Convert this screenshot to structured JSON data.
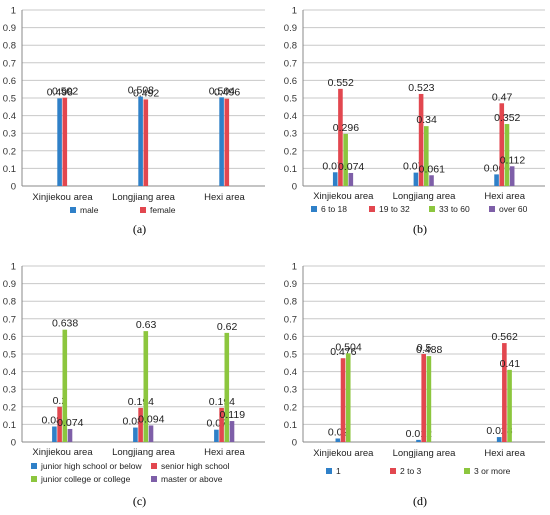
{
  "colors": {
    "blue": "#2f80c8",
    "red": "#e2474f",
    "green": "#8cc63e",
    "purple": "#7e5fa8"
  },
  "chart_data": [
    {
      "type": "bar",
      "caption": "(a)",
      "categories": [
        "Xinjiekou area",
        "Longjiang area",
        "Hexi area"
      ],
      "ylim": [
        0,
        1
      ],
      "yticks": [
        "0",
        "0.1",
        "0.2",
        "0.3",
        "0.4",
        "0.5",
        "0.6",
        "0.7",
        "0.8",
        "0.9",
        "1"
      ],
      "grid": true,
      "legend_position": "bottom",
      "series": [
        {
          "name": "male",
          "color": "blue",
          "values": [
            0.498,
            0.508,
            0.504
          ],
          "labels": [
            "0.498",
            "0.508",
            "0.504"
          ]
        },
        {
          "name": "female",
          "color": "red",
          "values": [
            0.502,
            0.492,
            0.496
          ],
          "labels": [
            "0.502",
            "0.492",
            "0.496"
          ]
        }
      ]
    },
    {
      "type": "bar",
      "caption": "(b)",
      "categories": [
        "Xinjiekou area",
        "Longjiang area",
        "Hexi area"
      ],
      "ylim": [
        0,
        1
      ],
      "yticks": [
        "0",
        "0.1",
        "0.2",
        "0.3",
        "0.4",
        "0.5",
        "0.6",
        "0.7",
        "0.8",
        "0.9",
        "1"
      ],
      "grid": true,
      "legend_position": "bottom",
      "series": [
        {
          "name": "6 to 18",
          "color": "blue",
          "values": [
            0.078,
            0.076,
            0.066
          ],
          "labels": [
            "0.078",
            "0.076",
            "0.066"
          ]
        },
        {
          "name": "19 to 32",
          "color": "red",
          "values": [
            0.552,
            0.523,
            0.47
          ],
          "labels": [
            "0.552",
            "0.523",
            "0.47"
          ]
        },
        {
          "name": "33 to 60",
          "color": "green",
          "values": [
            0.296,
            0.34,
            0.352
          ],
          "labels": [
            "0.296",
            "0.34",
            "0.352"
          ]
        },
        {
          "name": "over 60",
          "color": "purple",
          "values": [
            0.074,
            0.061,
            0.112
          ],
          "labels": [
            "0.074",
            "0.061",
            "0.112"
          ]
        }
      ]
    },
    {
      "type": "bar",
      "caption": "(c)",
      "categories": [
        "Xinjiekou area",
        "Longjiang area",
        "Hexi area"
      ],
      "ylim": [
        0,
        1
      ],
      "yticks": [
        "0",
        "0.1",
        "0.2",
        "0.3",
        "0.4",
        "0.5",
        "0.6",
        "0.7",
        "0.8",
        "0.9",
        "1"
      ],
      "grid": true,
      "legend_position": "bottom",
      "series": [
        {
          "name": "junior high school or below",
          "color": "blue",
          "values": [
            0.088,
            0.082,
            0.07
          ],
          "labels": [
            "0.088",
            "0.082",
            "0.07"
          ]
        },
        {
          "name": "senior high school",
          "color": "red",
          "values": [
            0.2,
            0.194,
            0.194
          ],
          "labels": [
            "0.2",
            "0.194",
            "0.194"
          ]
        },
        {
          "name": "junior college or college",
          "color": "green",
          "values": [
            0.638,
            0.63,
            0.62
          ],
          "labels": [
            "0.638",
            "0.63",
            "0.62"
          ]
        },
        {
          "name": "master or above",
          "color": "purple",
          "values": [
            0.074,
            0.094,
            0.119
          ],
          "labels": [
            "0.074",
            "0.094",
            "0.119"
          ]
        }
      ]
    },
    {
      "type": "bar",
      "caption": "(d)",
      "categories": [
        "Xinjiekou area",
        "Longjiang area",
        "Hexi area"
      ],
      "ylim": [
        0,
        1
      ],
      "yticks": [
        "0",
        "0.1",
        "0.2",
        "0.3",
        "0.4",
        "0.5",
        "0.6",
        "0.7",
        "0.8",
        "0.9",
        "1"
      ],
      "grid": true,
      "legend_position": "bottom",
      "series": [
        {
          "name": "1",
          "color": "blue",
          "values": [
            0.02,
            0.012,
            0.028
          ],
          "labels": [
            "0.02",
            "0.012",
            "0.028"
          ]
        },
        {
          "name": "2 to 3",
          "color": "red",
          "values": [
            0.476,
            0.5,
            0.562
          ],
          "labels": [
            "0.476",
            "0.5",
            "0.562"
          ]
        },
        {
          "name": "3 or more",
          "color": "green",
          "values": [
            0.504,
            0.488,
            0.41
          ],
          "labels": [
            "0.504",
            "0.488",
            "0.41"
          ]
        }
      ]
    }
  ]
}
